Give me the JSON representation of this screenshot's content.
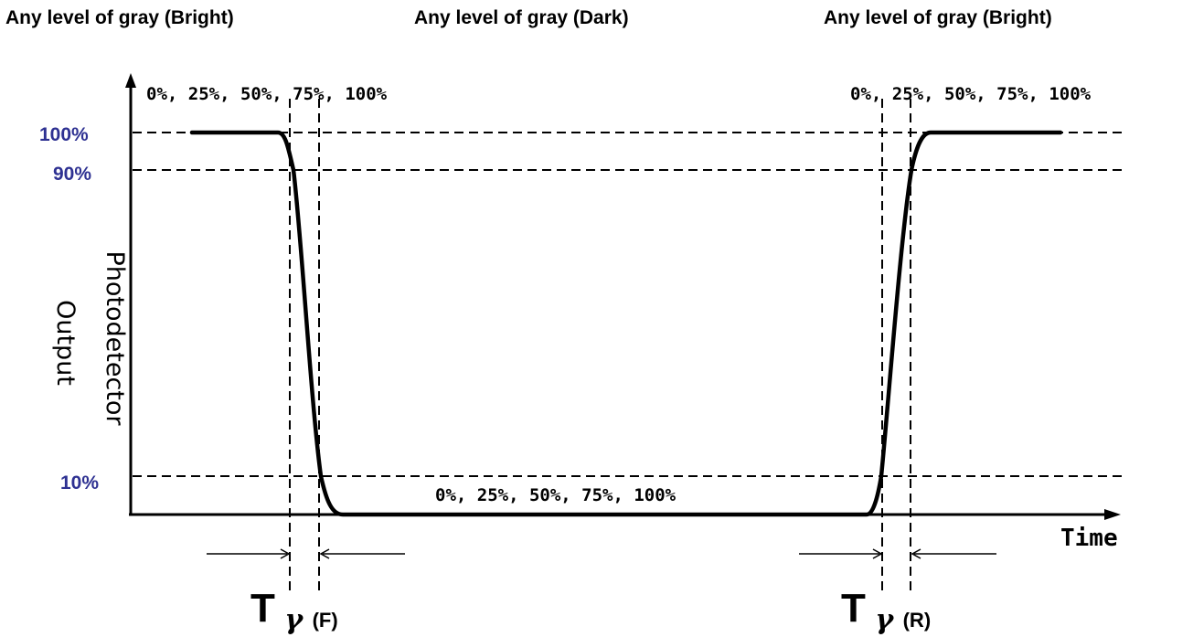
{
  "headers": {
    "left": "Any level of gray (Bright)",
    "middle": "Any level of gray (Dark)",
    "right": "Any level of gray (Bright)"
  },
  "levels": {
    "p100": "100%",
    "p90": "90%",
    "p10": "10%"
  },
  "gray_levels_text": "0%, 25%, 50%, 75%, 100%",
  "y_axis": {
    "line1": "Photodetector",
    "line2": "Output"
  },
  "x_axis_label": "Time",
  "fall_time": {
    "main": "T",
    "sub": "γ",
    "suffix": "(F)"
  },
  "rise_time": {
    "main": "T",
    "sub": "γ",
    "suffix": "(R)"
  },
  "colors": {
    "level_labels": "#2e3192",
    "lines": "#000000"
  }
}
